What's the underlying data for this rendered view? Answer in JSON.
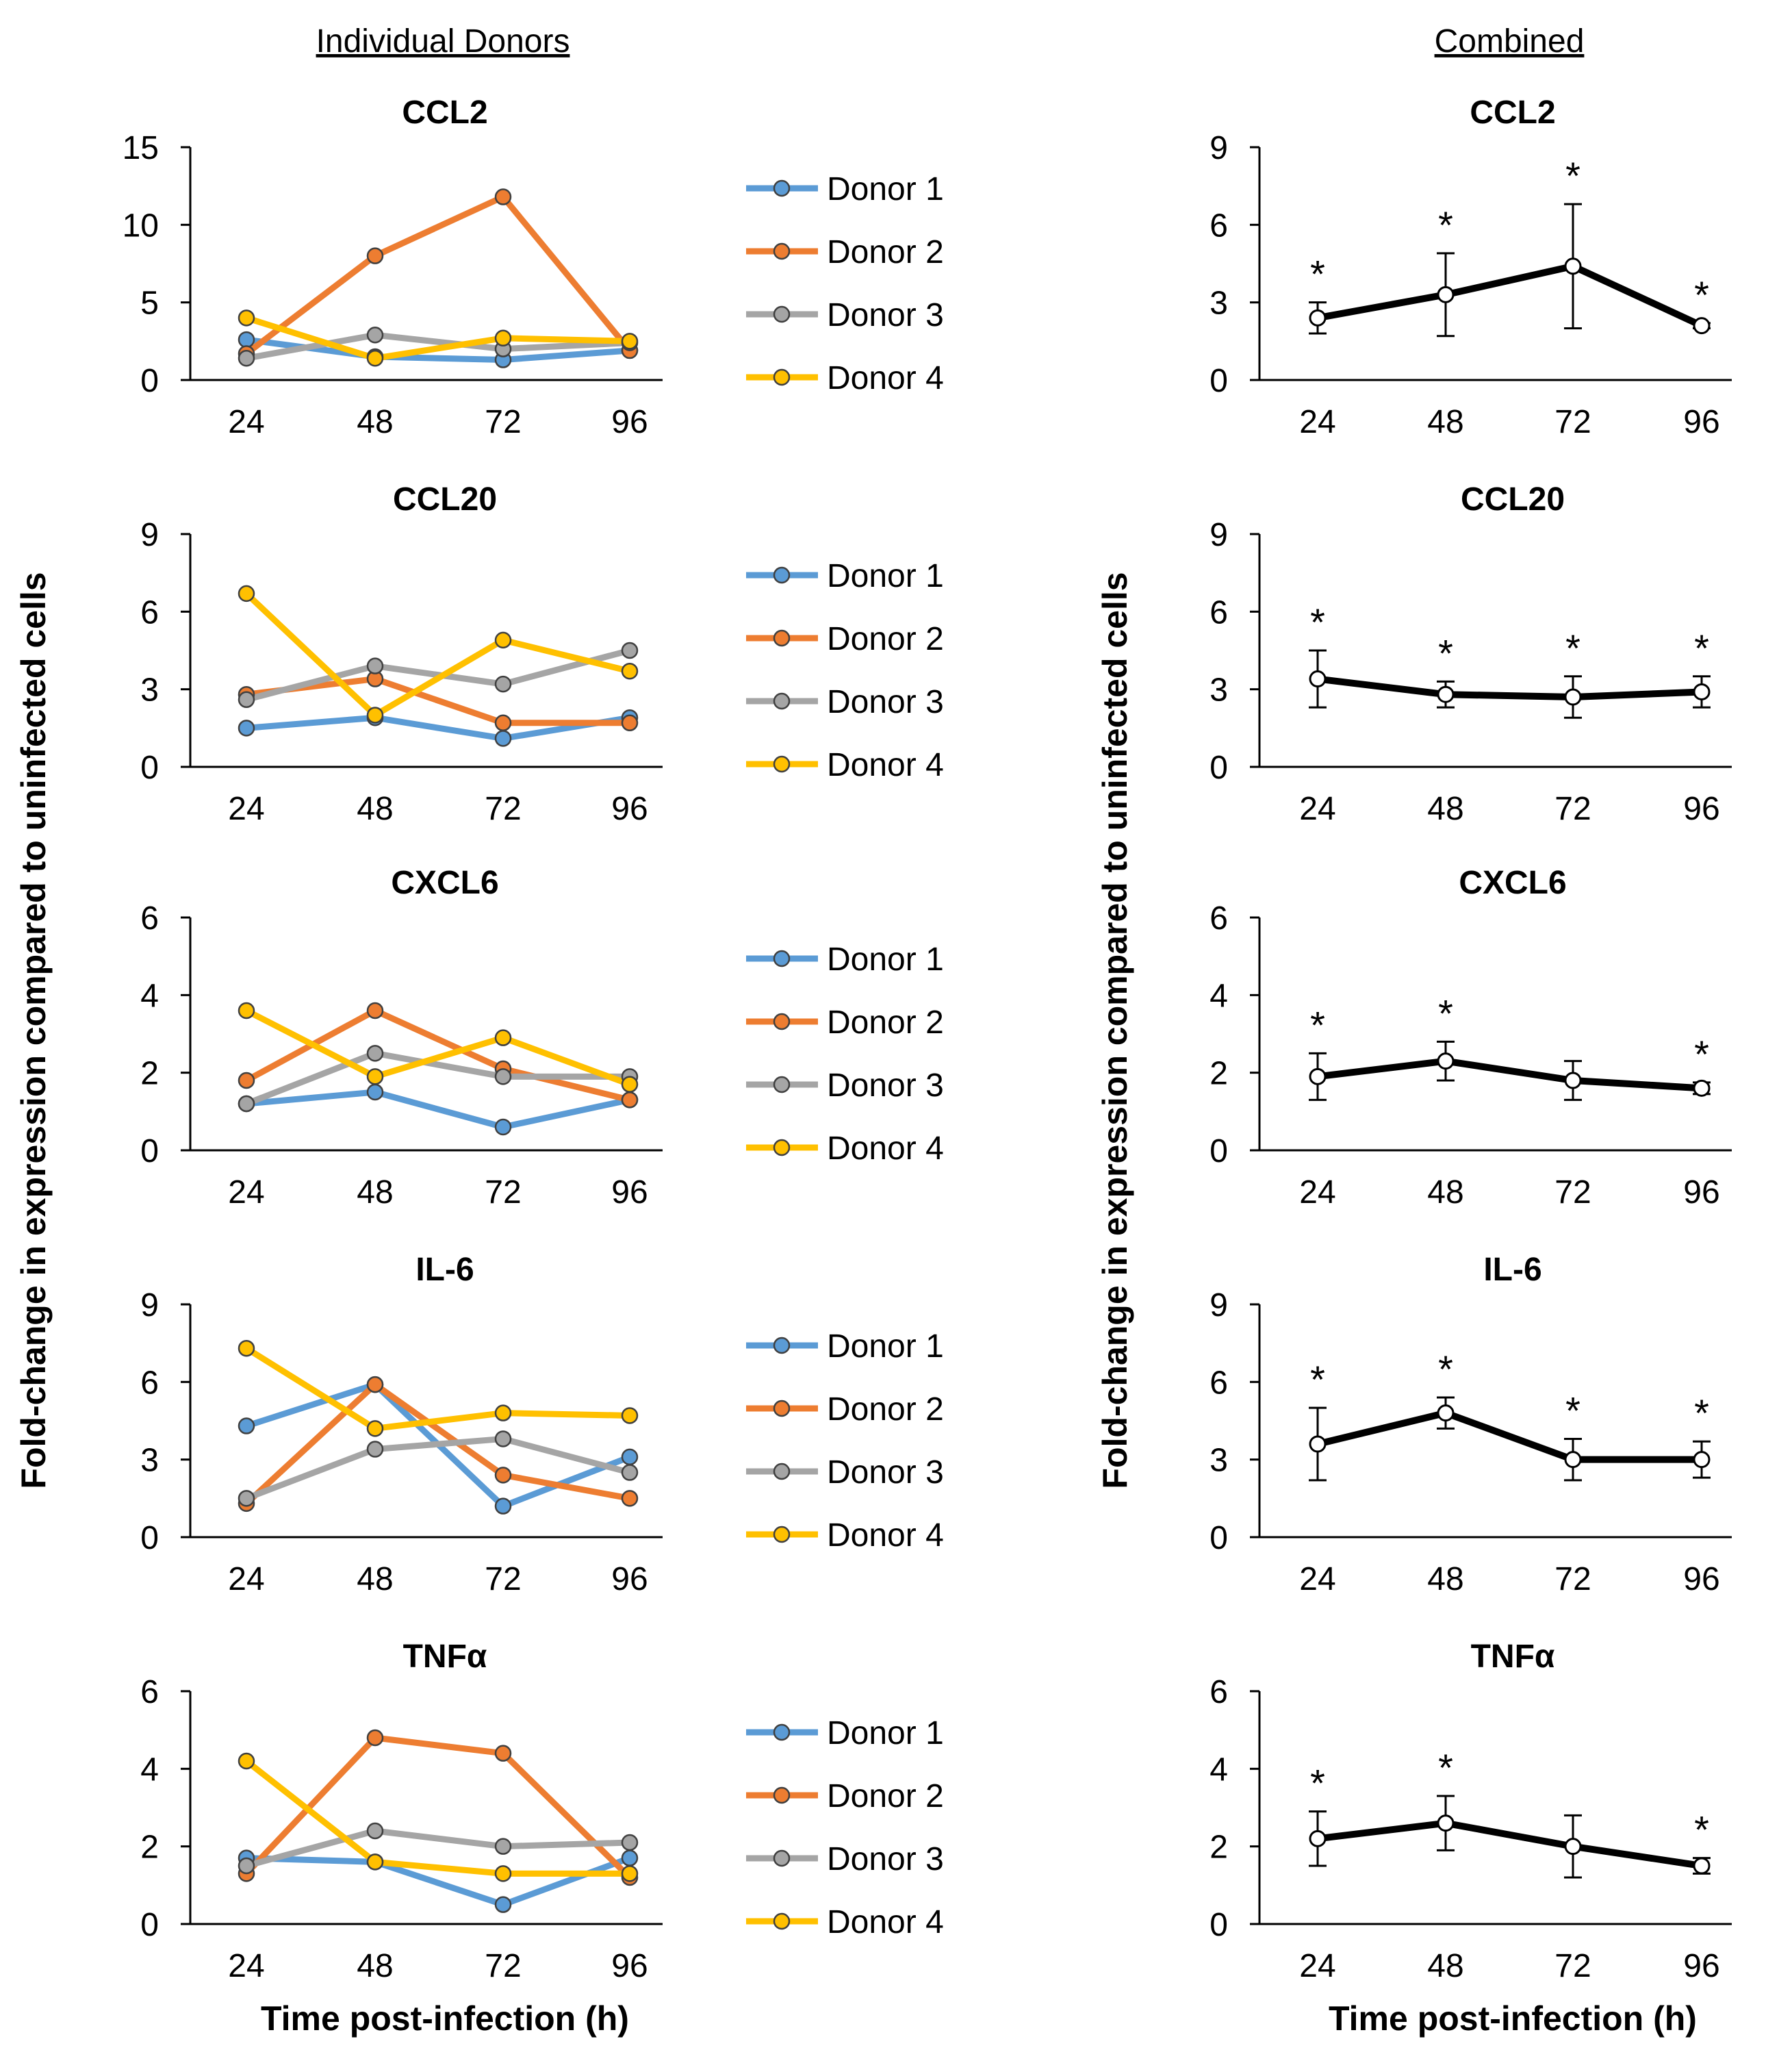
{
  "headers": {
    "left": "Individual Donors",
    "right": "Combined"
  },
  "x_axis_label": "Time post-infection (h)",
  "y_axis_label": "Fold-change in expression compared to uninfected cells",
  "colors": {
    "Donor 1": "#5b9bd5",
    "Donor 2": "#ed7d31",
    "Donor 3": "#a5a5a5",
    "Donor 4": "#ffc000",
    "combined": "#000000"
  },
  "chart_data": [
    {
      "panel": "individual",
      "type": "line",
      "title": "CCL2",
      "x": [
        "24",
        "48",
        "72",
        "96"
      ],
      "ylim": [
        0,
        15
      ],
      "yticks": [
        0,
        5,
        10,
        15
      ],
      "series": [
        {
          "name": "Donor 1",
          "values": [
            2.6,
            1.5,
            1.3,
            1.9
          ]
        },
        {
          "name": "Donor 2",
          "values": [
            1.7,
            8.0,
            11.8,
            1.9
          ]
        },
        {
          "name": "Donor 3",
          "values": [
            1.4,
            2.9,
            2.0,
            2.4
          ]
        },
        {
          "name": "Donor 4",
          "values": [
            4.0,
            1.4,
            2.7,
            2.5
          ]
        }
      ]
    },
    {
      "panel": "combined",
      "type": "line",
      "title": "CCL2",
      "x": [
        "24",
        "48",
        "72",
        "96"
      ],
      "ylim": [
        0,
        9
      ],
      "yticks": [
        0,
        3,
        6,
        9
      ],
      "values": [
        2.4,
        3.3,
        4.4,
        2.1
      ],
      "errors": [
        0.6,
        1.6,
        2.4,
        0.1
      ],
      "significant": [
        "*",
        "*",
        "*",
        "*"
      ]
    },
    {
      "panel": "individual",
      "type": "line",
      "title": "CCL20",
      "x": [
        "24",
        "48",
        "72",
        "96"
      ],
      "ylim": [
        0,
        9
      ],
      "yticks": [
        0,
        3,
        6,
        9
      ],
      "series": [
        {
          "name": "Donor 1",
          "values": [
            1.5,
            1.9,
            1.1,
            1.9
          ]
        },
        {
          "name": "Donor 2",
          "values": [
            2.8,
            3.4,
            1.7,
            1.7
          ]
        },
        {
          "name": "Donor 3",
          "values": [
            2.6,
            3.9,
            3.2,
            4.5
          ]
        },
        {
          "name": "Donor 4",
          "values": [
            6.7,
            2.0,
            4.9,
            3.7
          ]
        }
      ]
    },
    {
      "panel": "combined",
      "type": "line",
      "title": "CCL20",
      "x": [
        "24",
        "48",
        "72",
        "96"
      ],
      "ylim": [
        0,
        9
      ],
      "yticks": [
        0,
        3,
        6,
        9
      ],
      "values": [
        3.4,
        2.8,
        2.7,
        2.9
      ],
      "errors": [
        1.1,
        0.5,
        0.8,
        0.6
      ],
      "significant": [
        "*",
        "*",
        "*",
        "*"
      ]
    },
    {
      "panel": "individual",
      "type": "line",
      "title": "CXCL6",
      "x": [
        "24",
        "48",
        "72",
        "96"
      ],
      "ylim": [
        0,
        6
      ],
      "yticks": [
        0,
        2,
        4,
        6
      ],
      "series": [
        {
          "name": "Donor 1",
          "values": [
            1.2,
            1.5,
            0.6,
            1.3
          ]
        },
        {
          "name": "Donor 2",
          "values": [
            1.8,
            3.6,
            2.1,
            1.3
          ]
        },
        {
          "name": "Donor 3",
          "values": [
            1.2,
            2.5,
            1.9,
            1.9
          ]
        },
        {
          "name": "Donor 4",
          "values": [
            3.6,
            1.9,
            2.9,
            1.7
          ]
        }
      ]
    },
    {
      "panel": "combined",
      "type": "line",
      "title": "CXCL6",
      "x": [
        "24",
        "48",
        "72",
        "96"
      ],
      "ylim": [
        0,
        6
      ],
      "yticks": [
        0,
        2,
        4,
        6
      ],
      "values": [
        1.9,
        2.3,
        1.8,
        1.6
      ],
      "errors": [
        0.6,
        0.5,
        0.5,
        0.15
      ],
      "significant": [
        "*",
        "*",
        "",
        "*"
      ]
    },
    {
      "panel": "individual",
      "type": "line",
      "title": "IL-6",
      "x": [
        "24",
        "48",
        "72",
        "96"
      ],
      "ylim": [
        0,
        9
      ],
      "yticks": [
        0,
        3,
        6,
        9
      ],
      "series": [
        {
          "name": "Donor 1",
          "values": [
            4.3,
            5.9,
            1.2,
            3.1
          ]
        },
        {
          "name": "Donor 2",
          "values": [
            1.3,
            5.9,
            2.4,
            1.5
          ]
        },
        {
          "name": "Donor 3",
          "values": [
            1.5,
            3.4,
            3.8,
            2.5
          ]
        },
        {
          "name": "Donor 4",
          "values": [
            7.3,
            4.2,
            4.8,
            4.7
          ]
        }
      ]
    },
    {
      "panel": "combined",
      "type": "line",
      "title": "IL-6",
      "x": [
        "24",
        "48",
        "72",
        "96"
      ],
      "ylim": [
        0,
        9
      ],
      "yticks": [
        0,
        3,
        6,
        9
      ],
      "values": [
        3.6,
        4.8,
        3.0,
        3.0
      ],
      "errors": [
        1.4,
        0.6,
        0.8,
        0.7
      ],
      "significant": [
        "*",
        "*",
        "*",
        "*"
      ]
    },
    {
      "panel": "individual",
      "type": "line",
      "title": "TNFα",
      "x": [
        "24",
        "48",
        "72",
        "96"
      ],
      "ylim": [
        0,
        6
      ],
      "yticks": [
        0,
        2,
        4,
        6
      ],
      "series": [
        {
          "name": "Donor 1",
          "values": [
            1.7,
            1.6,
            0.5,
            1.7
          ]
        },
        {
          "name": "Donor 2",
          "values": [
            1.3,
            4.8,
            4.4,
            1.2
          ]
        },
        {
          "name": "Donor 3",
          "values": [
            1.5,
            2.4,
            2.0,
            2.1
          ]
        },
        {
          "name": "Donor 4",
          "values": [
            4.2,
            1.6,
            1.3,
            1.3
          ]
        }
      ]
    },
    {
      "panel": "combined",
      "type": "line",
      "title": "TNFα",
      "x": [
        "24",
        "48",
        "72",
        "96"
      ],
      "ylim": [
        0,
        6
      ],
      "yticks": [
        0,
        2,
        4,
        6
      ],
      "values": [
        2.2,
        2.6,
        2.0,
        1.5
      ],
      "errors": [
        0.7,
        0.7,
        0.8,
        0.2
      ],
      "significant": [
        "*",
        "*",
        "",
        "*"
      ]
    }
  ]
}
